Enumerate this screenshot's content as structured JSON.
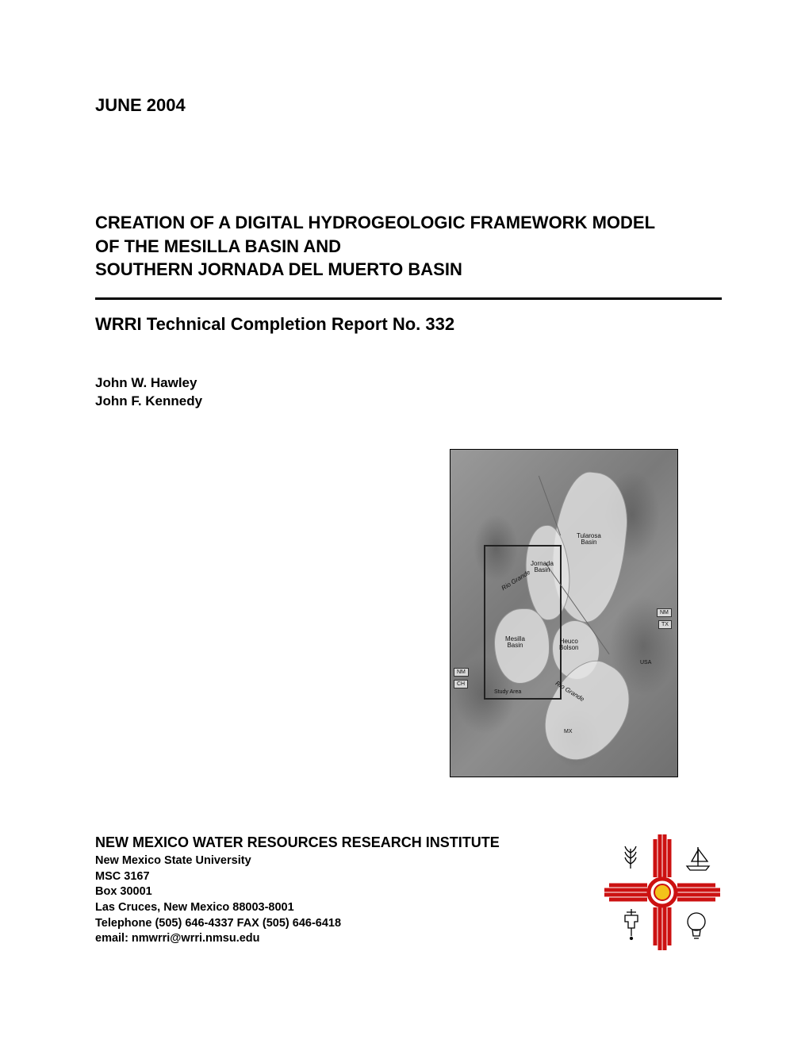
{
  "date": "JUNE 2004",
  "title_line1": "CREATION OF A DIGITAL HYDROGEOLOGIC FRAMEWORK MODEL",
  "title_line2": "OF THE MESILLA BASIN AND",
  "title_line3": "SOUTHERN JORNADA DEL MUERTO BASIN",
  "subtitle": "WRRI Technical Completion Report No. 332",
  "authors": {
    "a1": "John W. Hawley",
    "a2": "John F. Kennedy"
  },
  "map": {
    "labels": {
      "tularosa": "Tularosa\nBasin",
      "jornada": "Jornada\nBasin",
      "mesilla": "Mesilla\nBasin",
      "heuco": "Heuco\nBolson",
      "study": "Study Area",
      "nm1": "NM",
      "ch": "CH",
      "nm2": "NM",
      "tx": "TX",
      "usa": "USA",
      "mx": "MX",
      "rio1": "Rio Grande",
      "rio2": "Rio Grande"
    }
  },
  "footer": {
    "institute": "NEW MEXICO WATER RESOURCES RESEARCH INSTITUTE",
    "univ": "New Mexico State University",
    "msc": "MSC 3167",
    "box": "Box 30001",
    "city": "Las Cruces, New Mexico  88003-8001",
    "phone": "Telephone (505) 646-4337 FAX (505) 646-6418",
    "email": "email: nmwrri@wrri.nmsu.edu"
  },
  "colors": {
    "zia_red": "#cc1111",
    "zia_yellow": "#f3c21a"
  }
}
